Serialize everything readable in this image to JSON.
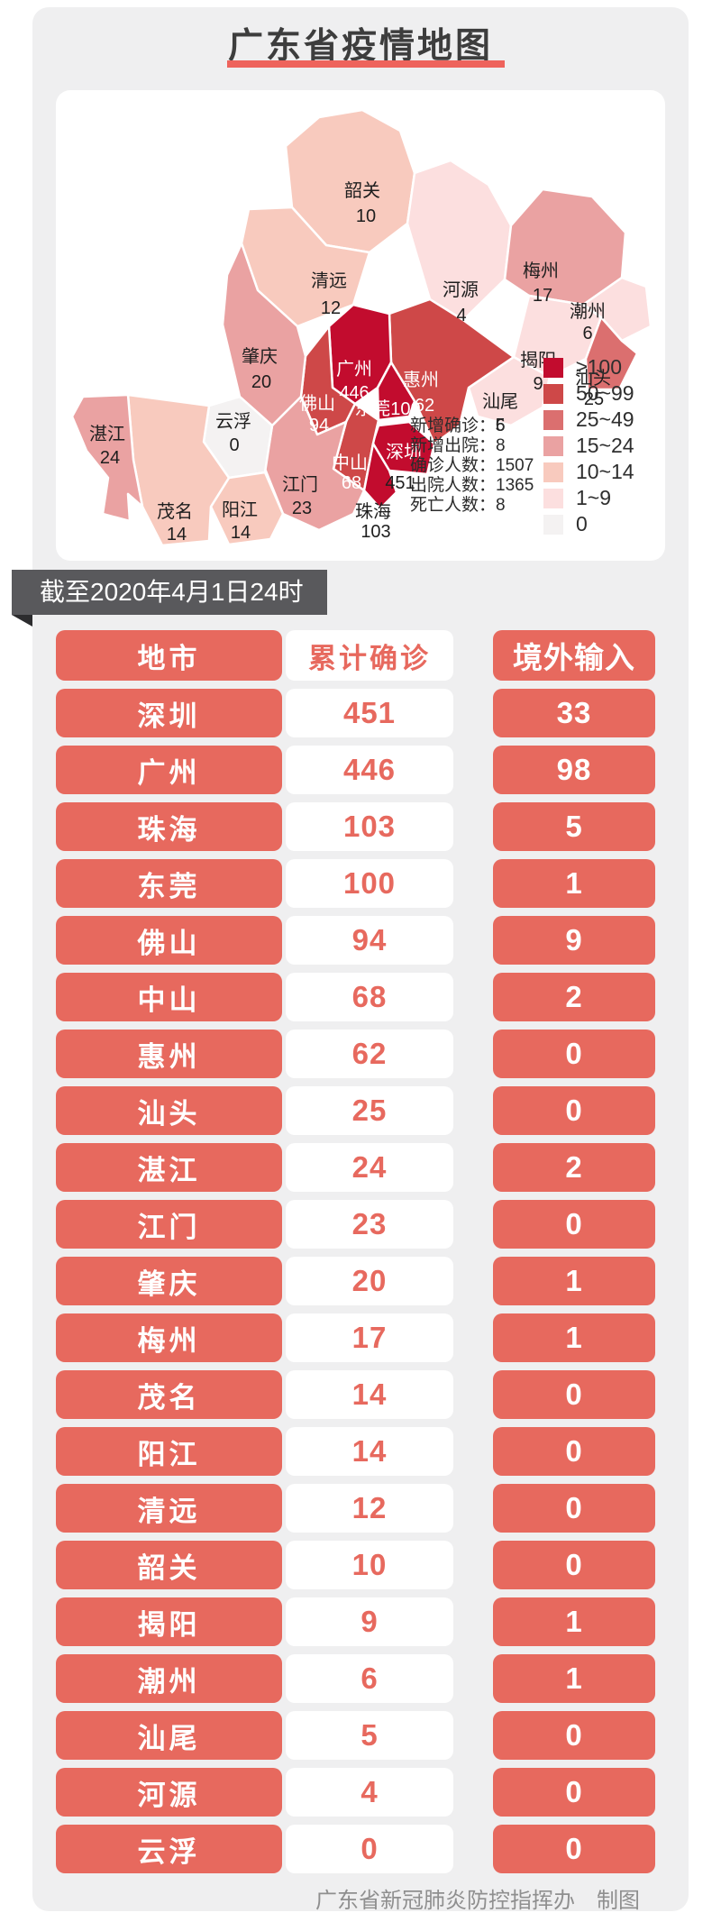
{
  "title": "广东省疫情地图",
  "banner": "截至2020年4月1日24时",
  "stats": [
    "新增确诊：6",
    "新增出院：8",
    "确诊人数：1507",
    "出院人数：1365",
    "死亡人数：8"
  ],
  "legend": [
    {
      "label": "≥100",
      "color": "#c20c2e"
    },
    {
      "label": "50~99",
      "color": "#ce4848"
    },
    {
      "label": "25~49",
      "color": "#db6f6f"
    },
    {
      "label": "15~24",
      "color": "#eaa2a2"
    },
    {
      "label": "10~14",
      "color": "#f8cabe"
    },
    {
      "label": "1~9",
      "color": "#fcdfdf"
    },
    {
      "label": "0",
      "color": "#f4f2f2"
    }
  ],
  "map_cities": {
    "shaoguan": {
      "name": "韶关",
      "value": "10",
      "bucket": "10~14",
      "name_color": "#1e1e1e",
      "value_color": "#1e1e1e"
    },
    "qingyuan": {
      "name": "清远",
      "value": "12",
      "bucket": "10~14",
      "name_color": "#1e1e1e",
      "value_color": "#1e1e1e"
    },
    "heyuan": {
      "name": "河源",
      "value": "4",
      "bucket": "1~9",
      "name_color": "#1e1e1e",
      "value_color": "#1e1e1e"
    },
    "meizhou": {
      "name": "梅州",
      "value": "17",
      "bucket": "15~24",
      "name_color": "#1e1e1e",
      "value_color": "#1e1e1e"
    },
    "chaozhou": {
      "name": "潮州",
      "value": "6",
      "bucket": "1~9",
      "name_color": "#1e1e1e",
      "value_color": "#1e1e1e"
    },
    "jieyang": {
      "name": "揭阳",
      "value": "9",
      "bucket": "1~9",
      "name_color": "#1e1e1e",
      "value_color": "#1e1e1e"
    },
    "shantou": {
      "name": "汕头",
      "value": "25",
      "bucket": "25~49",
      "name_color": "#1e1e1e",
      "value_color": "#1e1e1e"
    },
    "shanwei": {
      "name": "汕尾",
      "value": "5",
      "bucket": "1~9",
      "name_color": "#1e1e1e",
      "value_color": "#1e1e1e"
    },
    "huizhou": {
      "name": "惠州",
      "value": "62",
      "bucket": "50~99",
      "name_color": "#ffffff",
      "value_color": "#ffffff"
    },
    "guangzhou": {
      "name": "广州",
      "value": "446",
      "bucket": "≥100",
      "name_color": "#ffffff",
      "value_color": "#ffffff"
    },
    "dongguan": {
      "name": "东莞100",
      "value": "",
      "bucket": "≥100",
      "name_color": "#ffffff",
      "value_color": "#ffffff"
    },
    "shenzhen": {
      "name": "深圳",
      "value": "451",
      "bucket": "≥100",
      "name_color": "#ffffff",
      "value_color": "#1e1e1e"
    },
    "foshan": {
      "name": "佛山",
      "value": "94",
      "bucket": "50~99",
      "name_color": "#ffffff",
      "value_color": "#ffffff"
    },
    "zhongshan": {
      "name": "中山",
      "value": "68",
      "bucket": "50~99",
      "name_color": "#ffffff",
      "value_color": "#ffffff"
    },
    "zhuhai": {
      "name": "珠海",
      "value": "103",
      "bucket": "≥100",
      "name_color": "#1e1e1e",
      "value_color": "#1e1e1e"
    },
    "jiangmen": {
      "name": "江门",
      "value": "23",
      "bucket": "15~24",
      "name_color": "#1e1e1e",
      "value_color": "#1e1e1e"
    },
    "zhaoqing": {
      "name": "肇庆",
      "value": "20",
      "bucket": "15~24",
      "name_color": "#1e1e1e",
      "value_color": "#1e1e1e"
    },
    "yunfu": {
      "name": "云浮",
      "value": "0",
      "bucket": "0",
      "name_color": "#1e1e1e",
      "value_color": "#1e1e1e"
    },
    "yangjiang": {
      "name": "阳江",
      "value": "14",
      "bucket": "10~14",
      "name_color": "#1e1e1e",
      "value_color": "#1e1e1e"
    },
    "maoming": {
      "name": "茂名",
      "value": "14",
      "bucket": "10~14",
      "name_color": "#1e1e1e",
      "value_color": "#1e1e1e"
    },
    "zhanjiang": {
      "name": "湛江",
      "value": "24",
      "bucket": "15~24",
      "name_color": "#1e1e1e",
      "value_color": "#1e1e1e"
    }
  },
  "table": {
    "headers": [
      "地市",
      "累计确诊",
      "境外输入"
    ],
    "rows": [
      [
        "深圳",
        "451",
        "33"
      ],
      [
        "广州",
        "446",
        "98"
      ],
      [
        "珠海",
        "103",
        "5"
      ],
      [
        "东莞",
        "100",
        "1"
      ],
      [
        "佛山",
        "94",
        "9"
      ],
      [
        "中山",
        "68",
        "2"
      ],
      [
        "惠州",
        "62",
        "0"
      ],
      [
        "汕头",
        "25",
        "0"
      ],
      [
        "湛江",
        "24",
        "2"
      ],
      [
        "江门",
        "23",
        "0"
      ],
      [
        "肇庆",
        "20",
        "1"
      ],
      [
        "梅州",
        "17",
        "1"
      ],
      [
        "茂名",
        "14",
        "0"
      ],
      [
        "阳江",
        "14",
        "0"
      ],
      [
        "清远",
        "12",
        "0"
      ],
      [
        "韶关",
        "10",
        "0"
      ],
      [
        "揭阳",
        "9",
        "1"
      ],
      [
        "潮州",
        "6",
        "1"
      ],
      [
        "汕尾",
        "5",
        "0"
      ],
      [
        "河源",
        "4",
        "0"
      ],
      [
        "云浮",
        "0",
        "0"
      ]
    ]
  },
  "footer": "广东省新冠肺炎防控指挥办　制图",
  "chart_data": [
    {
      "type": "heatmap",
      "title": "广东省疫情地图",
      "note": "choropleth map of cumulative confirmed cases by city, as of 2020-04-01 24:00",
      "categories": [
        "深圳",
        "广州",
        "珠海",
        "东莞",
        "佛山",
        "中山",
        "惠州",
        "汕头",
        "湛江",
        "江门",
        "肇庆",
        "梅州",
        "茂名",
        "阳江",
        "清远",
        "韶关",
        "揭阳",
        "潮州",
        "汕尾",
        "河源",
        "云浮"
      ],
      "values": [
        451,
        446,
        103,
        100,
        94,
        68,
        62,
        25,
        24,
        23,
        20,
        17,
        14,
        14,
        12,
        10,
        9,
        6,
        5,
        4,
        0
      ],
      "legend_bins": [
        "≥100",
        "50~99",
        "25~49",
        "15~24",
        "10~14",
        "1~9",
        "0"
      ],
      "legend_position": "bottom-right",
      "annotations": [
        "新增确诊：6",
        "新增出院：8",
        "确诊人数：1507",
        "出院人数：1365",
        "死亡人数：8"
      ]
    },
    {
      "type": "table",
      "title": "截至2020年4月1日24时",
      "columns": [
        "地市",
        "累计确诊",
        "境外输入"
      ],
      "rows": [
        [
          "深圳",
          451,
          33
        ],
        [
          "广州",
          446,
          98
        ],
        [
          "珠海",
          103,
          5
        ],
        [
          "东莞",
          100,
          1
        ],
        [
          "佛山",
          94,
          9
        ],
        [
          "中山",
          68,
          2
        ],
        [
          "惠州",
          62,
          0
        ],
        [
          "汕头",
          25,
          0
        ],
        [
          "湛江",
          24,
          2
        ],
        [
          "江门",
          23,
          0
        ],
        [
          "肇庆",
          20,
          1
        ],
        [
          "梅州",
          17,
          1
        ],
        [
          "茂名",
          14,
          0
        ],
        [
          "阳江",
          14,
          0
        ],
        [
          "清远",
          12,
          0
        ],
        [
          "韶关",
          10,
          0
        ],
        [
          "揭阳",
          9,
          1
        ],
        [
          "潮州",
          6,
          1
        ],
        [
          "汕尾",
          5,
          0
        ],
        [
          "河源",
          4,
          0
        ],
        [
          "云浮",
          0,
          0
        ]
      ]
    }
  ]
}
